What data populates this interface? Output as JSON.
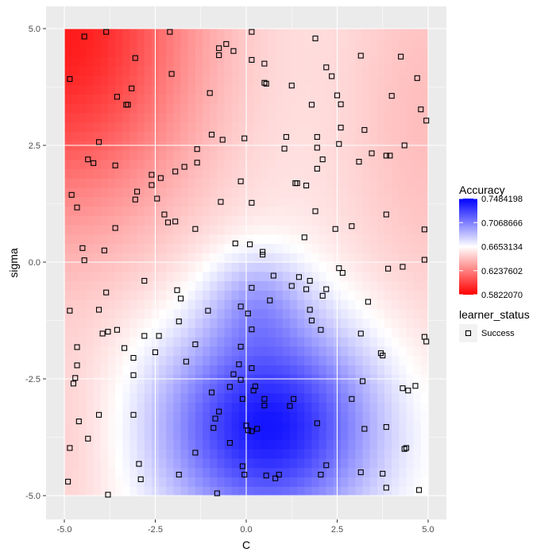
{
  "chart_data": {
    "type": "heatmap",
    "title": "",
    "xlabel": "C",
    "ylabel": "sigma",
    "xlim": [
      -5,
      5
    ],
    "ylim": [
      -5,
      5
    ],
    "x_ticks": [
      -5.0,
      -2.5,
      0.0,
      2.5,
      5.0
    ],
    "x_tick_labels": [
      "-5.0",
      "-2.5",
      "0.0",
      "2.5",
      "5.0"
    ],
    "y_ticks": [
      -5.0,
      -2.5,
      0.0,
      2.5,
      5.0
    ],
    "y_tick_labels": [
      "-5.0",
      "-2.5",
      "0.0",
      "2.5",
      "5.0"
    ],
    "fill": {
      "name": "Accuracy",
      "min": 0.582207,
      "max": 0.7484198,
      "midpoint": 0.6653134,
      "low_color": "#ff0000",
      "mid_color": "#ffffff",
      "high_color": "#0000ff",
      "breaks": [
        0.7484198,
        0.7068666,
        0.6653134,
        0.6237602,
        0.582207
      ],
      "break_labels": [
        "0.7484198",
        "0.7068666",
        "0.6653134",
        "0.6237602",
        "0.5822070"
      ]
    },
    "shape_legend": {
      "title": "learner_status",
      "entries": [
        "Success"
      ]
    },
    "points": [
      [
        -4.45,
        4.83
      ],
      [
        -3.85,
        4.93
      ],
      [
        -2.1,
        4.93
      ],
      [
        0.15,
        4.93
      ],
      [
        -0.55,
        4.67
      ],
      [
        -0.35,
        4.52
      ],
      [
        -0.75,
        4.58
      ],
      [
        -0.75,
        4.43
      ],
      [
        1.9,
        4.79
      ],
      [
        0.15,
        4.33
      ],
      [
        0.5,
        4.25
      ],
      [
        3.15,
        4.42
      ],
      [
        4.25,
        4.4
      ],
      [
        -3.05,
        4.37
      ],
      [
        -2.05,
        4.03
      ],
      [
        2.2,
        4.17
      ],
      [
        2.35,
        3.98
      ],
      [
        -4.85,
        3.92
      ],
      [
        -3.15,
        3.72
      ],
      [
        0.5,
        3.84
      ],
      [
        0.55,
        3.82
      ],
      [
        1.25,
        3.78
      ],
      [
        4.7,
        3.94
      ],
      [
        -3.55,
        3.54
      ],
      [
        -1.0,
        3.62
      ],
      [
        -3.3,
        3.37
      ],
      [
        -3.25,
        3.37
      ],
      [
        2.5,
        3.57
      ],
      [
        4.0,
        3.56
      ],
      [
        1.8,
        3.37
      ],
      [
        2.6,
        3.38
      ],
      [
        4.8,
        3.27
      ],
      [
        4.95,
        3.03
      ],
      [
        -0.95,
        2.73
      ],
      [
        -0.65,
        2.62
      ],
      [
        2.6,
        2.88
      ],
      [
        3.25,
        2.83
      ],
      [
        -4.05,
        2.57
      ],
      [
        -1.35,
        2.42
      ],
      [
        -0.05,
        2.65
      ],
      [
        1.05,
        2.43
      ],
      [
        1.1,
        2.68
      ],
      [
        1.95,
        2.45
      ],
      [
        2.55,
        2.53
      ],
      [
        1.95,
        2.68
      ],
      [
        3.45,
        2.33
      ],
      [
        3.85,
        2.28
      ],
      [
        3.95,
        2.28
      ],
      [
        4.35,
        2.5
      ],
      [
        -4.35,
        2.2
      ],
      [
        -4.2,
        2.12
      ],
      [
        -3.6,
        2.07
      ],
      [
        -2.6,
        1.87
      ],
      [
        -1.95,
        1.94
      ],
      [
        -1.7,
        2.04
      ],
      [
        -1.35,
        2.13
      ],
      [
        -2.35,
        1.8
      ],
      [
        1.95,
        2.0
      ],
      [
        2.1,
        2.2
      ],
      [
        3.1,
        2.15
      ],
      [
        -2.6,
        1.65
      ],
      [
        -0.15,
        1.73
      ],
      [
        1.35,
        1.69
      ],
      [
        1.4,
        1.69
      ],
      [
        1.65,
        1.64
      ],
      [
        -4.8,
        1.44
      ],
      [
        -3.0,
        1.51
      ],
      [
        -3.05,
        1.34
      ],
      [
        -2.45,
        1.36
      ],
      [
        -4.65,
        1.17
      ],
      [
        -0.7,
        1.29
      ],
      [
        0.15,
        1.27
      ],
      [
        -2.25,
        1.02
      ],
      [
        -1.95,
        0.87
      ],
      [
        -2.15,
        0.85
      ],
      [
        1.9,
        1.09
      ],
      [
        3.85,
        1.02
      ],
      [
        -3.6,
        0.73
      ],
      [
        -1.4,
        0.71
      ],
      [
        2.45,
        0.71
      ],
      [
        2.9,
        0.77
      ],
      [
        4.9,
        0.7
      ],
      [
        -4.5,
        0.3
      ],
      [
        -0.3,
        0.4
      ],
      [
        0.1,
        0.38
      ],
      [
        0.45,
        0.22
      ],
      [
        0.45,
        0.16
      ],
      [
        1.6,
        0.53
      ],
      [
        -4.45,
        0.04
      ],
      [
        -3.9,
        0.25
      ],
      [
        4.9,
        0.05
      ],
      [
        -2.8,
        -0.4
      ],
      [
        2.55,
        -0.13
      ],
      [
        2.65,
        -0.23
      ],
      [
        3.9,
        -0.14
      ],
      [
        4.3,
        -0.1
      ],
      [
        -3.85,
        -0.65
      ],
      [
        -1.9,
        -0.6
      ],
      [
        0.15,
        -0.55
      ],
      [
        0.75,
        -0.29
      ],
      [
        1.25,
        -0.51
      ],
      [
        1.45,
        -0.32
      ],
      [
        1.75,
        -0.4
      ],
      [
        1.65,
        -0.58
      ],
      [
        2.1,
        -0.72
      ],
      [
        2.2,
        -0.58
      ],
      [
        -1.8,
        -0.78
      ],
      [
        0.65,
        -0.82
      ],
      [
        -4.85,
        -1.04
      ],
      [
        -4.05,
        -1.02
      ],
      [
        -1.05,
        -1.04
      ],
      [
        -0.15,
        -0.95
      ],
      [
        0.05,
        -1.1
      ],
      [
        1.75,
        -1.02
      ],
      [
        3.35,
        -0.85
      ],
      [
        -3.95,
        -1.53
      ],
      [
        -3.8,
        -1.49
      ],
      [
        -3.55,
        -1.45
      ],
      [
        -2.8,
        -1.58
      ],
      [
        -2.4,
        -1.58
      ],
      [
        -1.85,
        -1.27
      ],
      [
        0.15,
        -1.44
      ],
      [
        1.8,
        -1.25
      ],
      [
        2.05,
        -1.45
      ],
      [
        3.15,
        -1.53
      ],
      [
        4.9,
        -1.6
      ],
      [
        -4.65,
        -1.82
      ],
      [
        -3.35,
        -1.84
      ],
      [
        -3.1,
        -2.05
      ],
      [
        -2.5,
        -1.93
      ],
      [
        -1.4,
        -1.76
      ],
      [
        -0.15,
        -1.81
      ],
      [
        -1.65,
        -2.13
      ],
      [
        3.7,
        -1.95
      ],
      [
        3.75,
        -2.0
      ],
      [
        4.95,
        -1.7
      ],
      [
        -4.65,
        -2.21
      ],
      [
        -3.1,
        -2.42
      ],
      [
        -0.2,
        -2.19
      ],
      [
        0.15,
        -2.27
      ],
      [
        -0.35,
        -2.4
      ],
      [
        -0.15,
        -2.52
      ],
      [
        -0.45,
        -2.67
      ],
      [
        0.25,
        -2.66
      ],
      [
        0.2,
        -2.75
      ],
      [
        -4.7,
        -2.48
      ],
      [
        -4.75,
        -2.6
      ],
      [
        -0.95,
        -2.79
      ],
      [
        3.2,
        -2.55
      ],
      [
        4.3,
        -2.7
      ],
      [
        4.45,
        -2.75
      ],
      [
        4.65,
        -2.65
      ],
      [
        -0.1,
        -2.93
      ],
      [
        0.5,
        -2.93
      ],
      [
        0.5,
        -3.07
      ],
      [
        1.2,
        -3.08
      ],
      [
        1.3,
        -2.93
      ],
      [
        2.9,
        -2.93
      ],
      [
        -0.75,
        -3.2
      ],
      [
        -4.05,
        -3.27
      ],
      [
        -3.1,
        -3.27
      ],
      [
        -4.6,
        -3.41
      ],
      [
        -0.85,
        -3.35
      ],
      [
        -0.9,
        -3.55
      ],
      [
        0.0,
        -3.5
      ],
      [
        0.05,
        -3.6
      ],
      [
        0.15,
        -3.62
      ],
      [
        0.3,
        -3.57
      ],
      [
        1.95,
        -3.45
      ],
      [
        3.25,
        -3.57
      ],
      [
        3.85,
        -3.53
      ],
      [
        -4.35,
        -3.78
      ],
      [
        -0.45,
        -3.87
      ],
      [
        -4.85,
        -3.98
      ],
      [
        -1.4,
        -4.08
      ],
      [
        4.35,
        -4.0
      ],
      [
        4.4,
        -3.98
      ],
      [
        -2.95,
        -4.32
      ],
      [
        -0.1,
        -4.37
      ],
      [
        -2.9,
        -4.65
      ],
      [
        -1.85,
        -4.55
      ],
      [
        -0.05,
        -4.55
      ],
      [
        0.55,
        -4.57
      ],
      [
        0.8,
        -4.63
      ],
      [
        0.9,
        -4.55
      ],
      [
        2.05,
        -4.55
      ],
      [
        2.2,
        -4.35
      ],
      [
        3.15,
        -4.5
      ],
      [
        3.75,
        -4.53
      ],
      [
        -4.9,
        -4.7
      ],
      [
        -3.8,
        -4.98
      ],
      [
        -0.8,
        -4.95
      ],
      [
        3.85,
        -4.83
      ],
      [
        4.75,
        -4.88
      ]
    ]
  }
}
